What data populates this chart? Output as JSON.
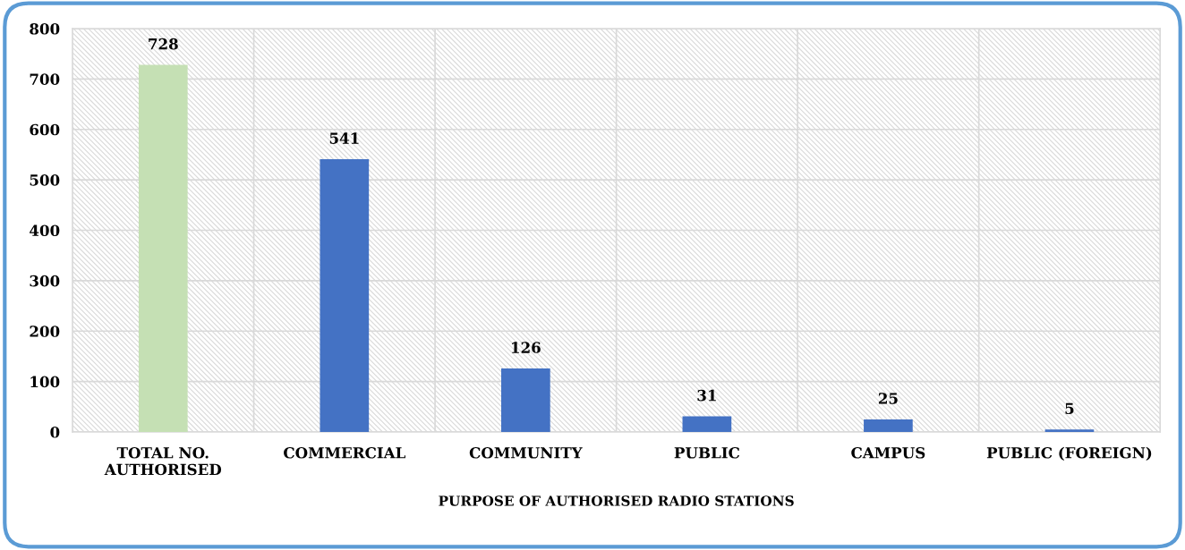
{
  "chart_data": {
    "type": "bar",
    "xlabel": "PURPOSE OF AUTHORISED RADIO STATIONS",
    "categories": [
      "TOTAL NO.\nAUTHORISED",
      "COMMERCIAL",
      "COMMUNITY",
      "PUBLIC",
      "CAMPUS",
      "PUBLIC (FOREIGN)"
    ],
    "values": [
      728,
      541,
      126,
      31,
      25,
      5
    ],
    "colors": [
      "#c5e0b4",
      "#4472c4",
      "#4472c4",
      "#4472c4",
      "#4472c4",
      "#4472c4"
    ],
    "ylim": [
      0,
      800
    ],
    "yticks": [
      0,
      100,
      200,
      300,
      400,
      500,
      600,
      700,
      800
    ],
    "grid": true,
    "data_labels": true
  }
}
